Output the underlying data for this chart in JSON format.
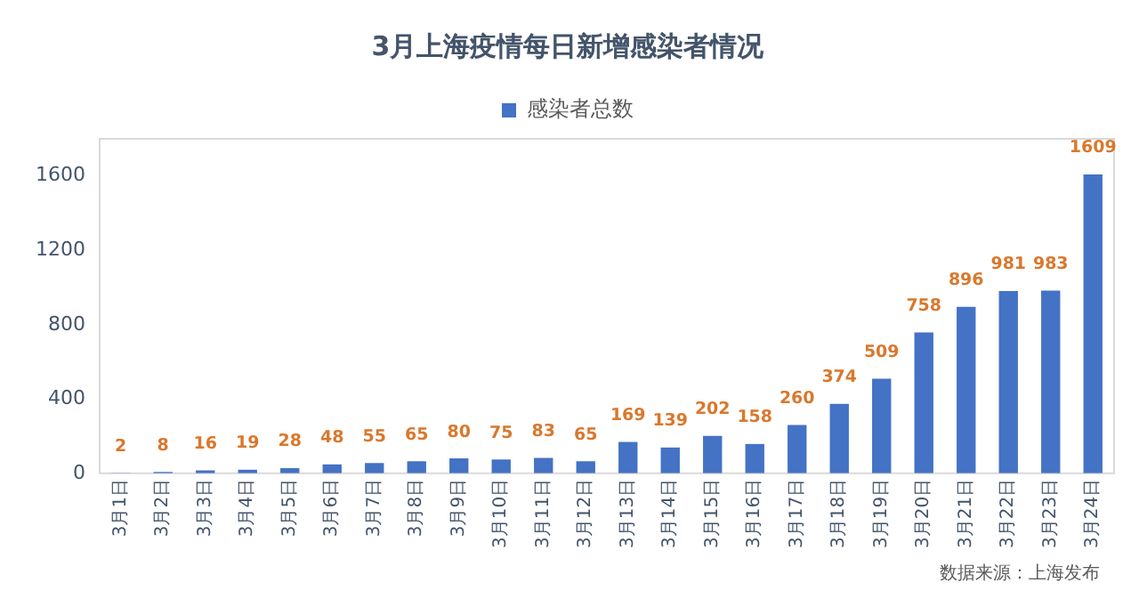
{
  "chart_data": {
    "type": "bar",
    "title": "3月上海疫情每日新增感染者情况",
    "categories": [
      "3月1日",
      "3月2日",
      "3月3日",
      "3月4日",
      "3月5日",
      "3月6日",
      "3月7日",
      "3月8日",
      "3月9日",
      "3月10日",
      "3月11日",
      "3月12日",
      "3月13日",
      "3月14日",
      "3月15日",
      "3月16日",
      "3月17日",
      "3月18日",
      "3月19日",
      "3月20日",
      "3月21日",
      "3月22日",
      "3月23日",
      "3月24日"
    ],
    "series": [
      {
        "name": "感染者总数",
        "color": "#4472c4",
        "values": [
          2,
          8,
          16,
          19,
          28,
          48,
          55,
          65,
          80,
          75,
          83,
          65,
          169,
          139,
          202,
          158,
          260,
          374,
          509,
          758,
          896,
          981,
          983,
          1609
        ]
      }
    ],
    "ylim": [
      0,
      1800
    ],
    "yticks": [
      0,
      400,
      800,
      1200,
      1600
    ],
    "grid": false,
    "legend": "top",
    "data_labels": true,
    "annotations": [
      "数据来源：上海发布"
    ]
  }
}
